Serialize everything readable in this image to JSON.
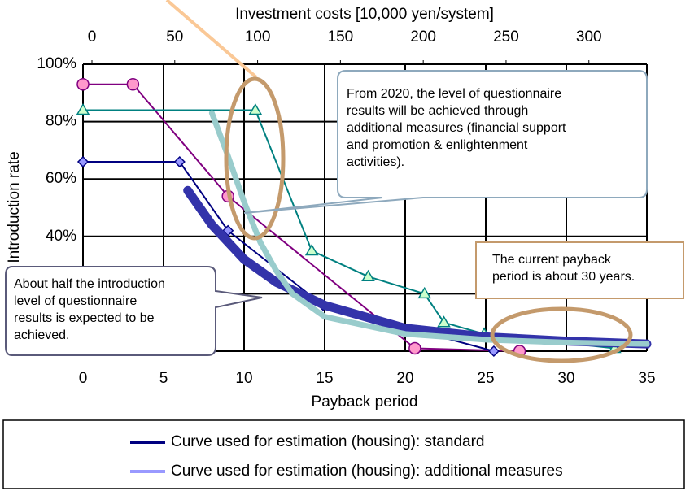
{
  "chart_data": {
    "type": "line",
    "x_label": "Payback period",
    "y_label": "Introduction rate",
    "x2_label": "Investment costs [10,000 yen/system]",
    "xlim": [
      0,
      35
    ],
    "xticks": [
      0,
      5,
      10,
      15,
      20,
      25,
      30,
      35
    ],
    "x2lim": [
      -5.4,
      335
    ],
    "x2ticks": [
      0,
      50,
      100,
      150,
      200,
      250,
      300
    ],
    "ylim": [
      0,
      100
    ],
    "yticks": [
      {
        "value": 0,
        "label": "0%"
      },
      {
        "value": 20,
        "label": "20%"
      },
      {
        "value": 40,
        "label": "40%"
      },
      {
        "value": 60,
        "label": "60%"
      },
      {
        "value": 80,
        "label": "80%"
      },
      {
        "value": 100,
        "label": "100%"
      }
    ],
    "grid": true,
    "series": [
      {
        "color": "#800080",
        "marker": "circle",
        "marker_color": "#ff99cc",
        "width": 2,
        "x": [
          0,
          3.1,
          9,
          20.6,
          27.1
        ],
        "values": [
          93,
          93,
          54,
          1,
          0
        ]
      },
      {
        "color": "#000080",
        "marker": "diamond",
        "marker_color": "#9999ff",
        "width": 2,
        "x": [
          0,
          6,
          9,
          14.9,
          25.5
        ],
        "values": [
          66,
          66,
          42,
          16,
          0
        ]
      },
      {
        "color": "#008080",
        "marker": "triangle",
        "marker_color": "#ccffcc",
        "width": 2,
        "x": [
          0,
          10.7,
          14.2,
          17.7,
          21.2,
          22.4,
          24.9,
          33
        ],
        "values": [
          84,
          84,
          35,
          26,
          20,
          10,
          6,
          1
        ]
      },
      {
        "name": "Curve used for estimation (housing): standard",
        "color": "#3333aa",
        "legend_color": "#000080",
        "width": 11,
        "x": [
          6.5,
          8,
          10,
          12,
          15,
          20,
          25,
          30,
          35
        ],
        "values": [
          56,
          44,
          32,
          24,
          16,
          8,
          5,
          3.5,
          2.5
        ]
      },
      {
        "name": "Curve used for estimation (housing): additional measures",
        "color": "#99cccc",
        "legend_color": "#9999ff",
        "width": 7,
        "x": [
          8,
          9,
          10,
          11,
          12,
          13,
          15,
          20,
          25,
          30,
          35
        ],
        "values": [
          83,
          68,
          52,
          38,
          28,
          20,
          12,
          6,
          4,
          3,
          2.5
        ]
      }
    ],
    "annotations": [
      {
        "lines": [
          "From 2020, the level of questionnaire",
          "results will be achieved through",
          "additional measures (financial support",
          "and promotion & enlightenment",
          "activities)."
        ]
      },
      {
        "lines": [
          "About half the introduction",
          "level of questionnaire",
          "results is expected to be",
          "achieved."
        ]
      },
      {
        "lines": [
          "The current payback",
          "period is about 30 years."
        ]
      }
    ]
  }
}
